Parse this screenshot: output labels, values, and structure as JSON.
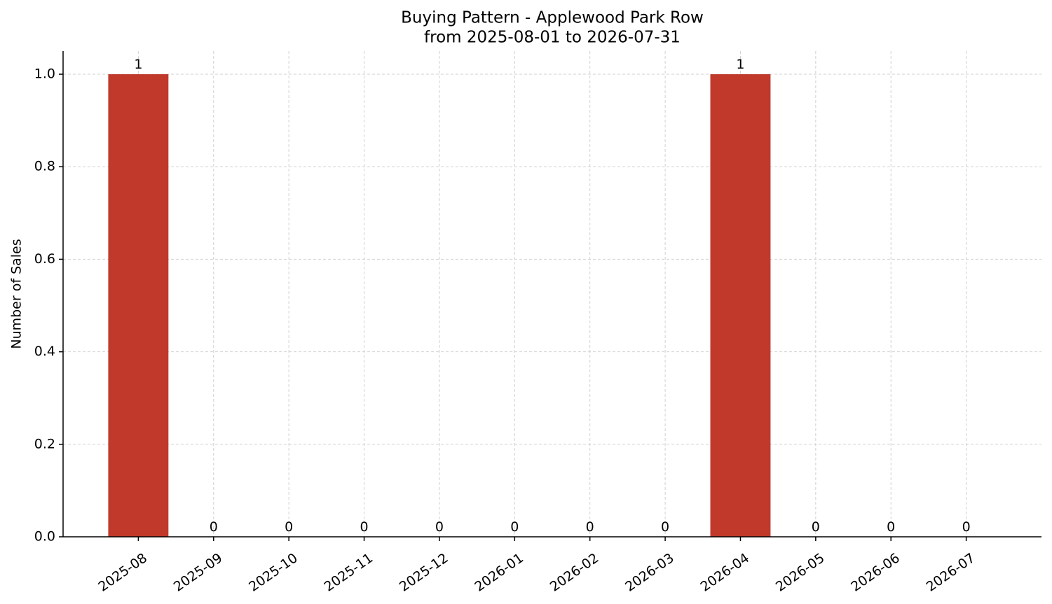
{
  "chart_data": {
    "type": "bar",
    "title": "Buying Pattern - Applewood Park Row",
    "subtitle": "from 2025-08-01 to 2026-07-31",
    "y_label": "Number of Sales",
    "categories": [
      "2025-08",
      "2025-09",
      "2025-10",
      "2025-11",
      "2025-12",
      "2026-01",
      "2026-02",
      "2026-03",
      "2026-04",
      "2026-05",
      "2026-06",
      "2026-07"
    ],
    "values": [
      1,
      0,
      0,
      0,
      0,
      0,
      0,
      0,
      1,
      0,
      0,
      0
    ],
    "color": "#c0392b",
    "ylim": [
      0,
      1.05
    ],
    "yticks": [
      {
        "value": 0,
        "label": "0.0"
      },
      0.2,
      0.4,
      0.6,
      0.8,
      {
        "value": 1,
        "label": "1.0"
      }
    ],
    "grid": true
  }
}
